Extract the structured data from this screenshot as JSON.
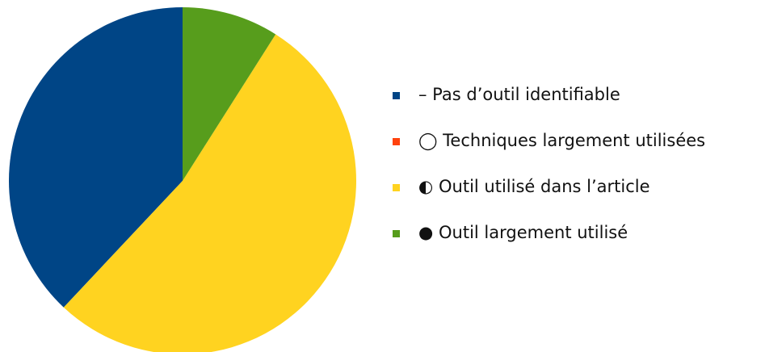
{
  "chart_data": {
    "type": "pie",
    "series": [
      {
        "name": "–  Pas d’outil identifiable",
        "color": "#004586",
        "value": 38
      },
      {
        "name": "◯ Techniques largement utilisées",
        "color": "#ff420e",
        "value": 0
      },
      {
        "name": "◐ Outil utilisé dans l’article",
        "color": "#ffd320",
        "value": 53
      },
      {
        "name": "● Outil largement utilisé",
        "color": "#579d1c",
        "value": 9
      }
    ],
    "legend": "right"
  }
}
